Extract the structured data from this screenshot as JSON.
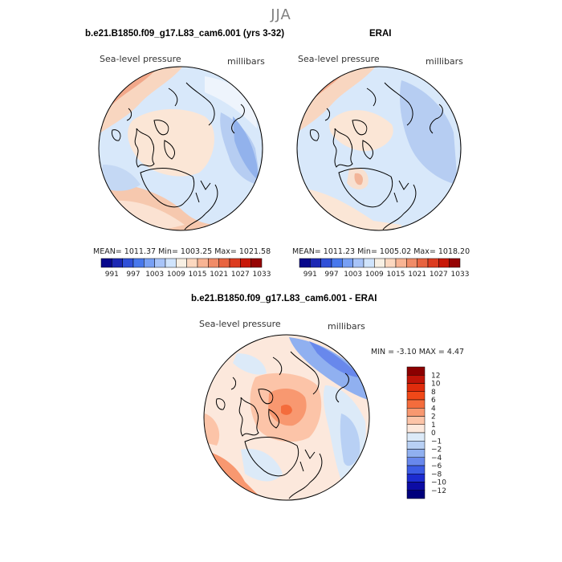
{
  "suptitle": "JJA",
  "panels": {
    "model": {
      "title": "b.e21.B1850.f09_g17.L83_cam6.001 (yrs 3-32)",
      "variable": "Sea-level pressure",
      "units": "millibars",
      "stats": "MEAN= 1011.37   Min= 1003.25   Max= 1021.58"
    },
    "obs": {
      "title": "ERAI",
      "variable": "Sea-level pressure",
      "units": "millibars",
      "stats": "MEAN= 1011.23   Min= 1005.02   Max= 1018.20"
    },
    "diff": {
      "title": "b.e21.B1850.f09_g17.L83_cam6.001 - ERAI",
      "variable": "Sea-level pressure",
      "units": "millibars",
      "stats": "MIN =   -3.10  MAX =    4.47"
    }
  },
  "abs_colorbar": {
    "labels": [
      "991",
      "997",
      "1003",
      "1009",
      "1015",
      "1021",
      "1027",
      "1033"
    ],
    "colors": [
      "#08088c",
      "#1c28b4",
      "#3050d8",
      "#4878ec",
      "#78a0f4",
      "#a8c4f8",
      "#d0e4fc",
      "#f8f0e4",
      "#fcd8c0",
      "#f8b494",
      "#f08c68",
      "#e86440",
      "#dc3c20",
      "#c81808",
      "#960404"
    ]
  },
  "diff_colorbar": {
    "labels": [
      "12",
      "10",
      "8",
      "6",
      "4",
      "2",
      "1",
      "0",
      "−1",
      "−2",
      "−4",
      "−6",
      "−8",
      "−10",
      "−12"
    ],
    "colors": [
      "#8c0000",
      "#c01408",
      "#e02c0c",
      "#f04818",
      "#f46c3c",
      "#f89870",
      "#fcc4a8",
      "#fce8dc",
      "#dceaf8",
      "#b8d0f4",
      "#90b0f0",
      "#6888ec",
      "#3c5ce4",
      "#1c2cd0",
      "#0c0ca4",
      "#00007c"
    ]
  }
}
